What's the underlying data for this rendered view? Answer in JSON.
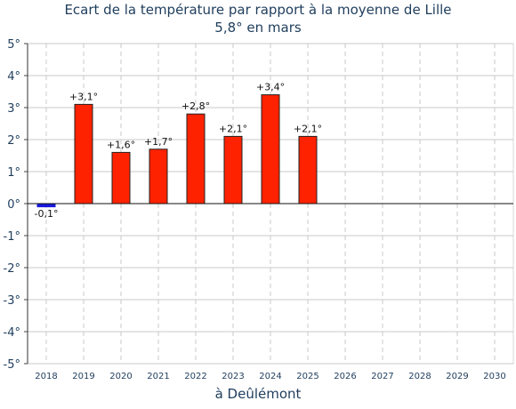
{
  "chart_data": {
    "type": "bar",
    "title": "Ecart de la température par rapport à la moyenne de Lille",
    "subtitle": "5,8° en mars",
    "xlabel": "à Deûlémont",
    "categories": [
      "2018",
      "2019",
      "2020",
      "2021",
      "2022",
      "2023",
      "2024",
      "2025",
      "2026",
      "2027",
      "2028",
      "2029",
      "2030"
    ],
    "values": [
      -0.1,
      3.1,
      1.6,
      1.7,
      2.8,
      2.1,
      3.4,
      2.1,
      null,
      null,
      null,
      null,
      null
    ],
    "data_labels": [
      "-0,1°",
      "+3,1°",
      "+1,6°",
      "+1,7°",
      "+2,8°",
      "+2,1°",
      "+3,4°",
      "+2,1°",
      "",
      "",
      "",
      "",
      ""
    ],
    "yticks": [
      5,
      4,
      3,
      2,
      1,
      0,
      -1,
      -2,
      -3,
      -4,
      -5
    ],
    "ytick_labels": [
      "5°",
      "4°",
      "3°",
      "2°",
      "1°",
      "0°",
      "-1°",
      "-2°",
      "-3°",
      "-4°",
      "-5°"
    ],
    "ylim": [
      -5,
      5
    ],
    "grid": true,
    "colors": {
      "positive": "#ff2200",
      "negative": "#1a1adb",
      "grid": "#c8c8c8",
      "text": "#1f3d5c"
    }
  }
}
